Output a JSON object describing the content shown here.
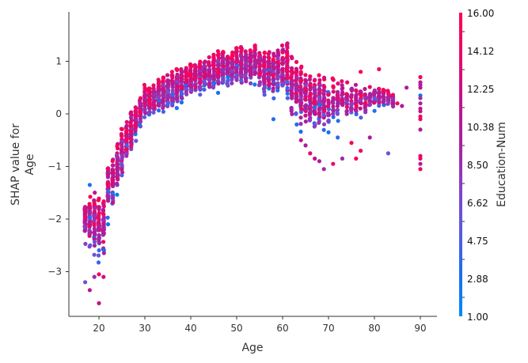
{
  "chart_data": {
    "type": "scatter",
    "title": "",
    "xlabel": "Age",
    "ylabel": "SHAP value for\nAge",
    "ylabel_lines": [
      "SHAP value for",
      "Age"
    ],
    "xlim": [
      14,
      94
    ],
    "ylim": [
      -3.85,
      1.9
    ],
    "x_ticks": [
      20,
      30,
      40,
      50,
      60,
      70,
      80,
      90
    ],
    "y_ticks": [
      1,
      0,
      -1,
      -2,
      -3
    ],
    "y_tick_labels": [
      "1",
      "0",
      "−1",
      "−2",
      "−3"
    ],
    "grid": false,
    "colorbar": {
      "label": "Education-Num",
      "min": 1.0,
      "max": 16.0,
      "tick_labels": [
        "16.00",
        "14.12",
        "12.25",
        "10.38",
        "8.50",
        "6.62",
        "4.75",
        "2.88",
        "1.00"
      ],
      "colormap": [
        "#008afb",
        "#1b6ef0",
        "#5b5ae0",
        "#8a3fc4",
        "#a8219f",
        "#c4128a",
        "#e60a6b",
        "#ff0052"
      ]
    },
    "point_color_low": "#008afb",
    "point_color_high": "#ff0052",
    "profile": [
      {
        "age": 17,
        "lo": -2.65,
        "hi": -1.55
      },
      {
        "age": 18,
        "lo": -2.75,
        "hi": -1.5
      },
      {
        "age": 19,
        "lo": -2.8,
        "hi": -1.45
      },
      {
        "age": 20,
        "lo": -2.85,
        "hi": -1.6
      },
      {
        "age": 21,
        "lo": -2.85,
        "hi": -1.55
      },
      {
        "age": 22,
        "lo": -2.1,
        "hi": -0.9
      },
      {
        "age": 23,
        "lo": -2.0,
        "hi": -0.8
      },
      {
        "age": 24,
        "lo": -1.6,
        "hi": -0.55
      },
      {
        "age": 25,
        "lo": -1.35,
        "hi": -0.25
      },
      {
        "age": 26,
        "lo": -1.0,
        "hi": -0.15
      },
      {
        "age": 27,
        "lo": -0.85,
        "hi": 0.05
      },
      {
        "age": 28,
        "lo": -0.6,
        "hi": 0.15
      },
      {
        "age": 29,
        "lo": -0.35,
        "hi": 0.3
      },
      {
        "age": 30,
        "lo": -0.2,
        "hi": 0.55
      },
      {
        "age": 32,
        "lo": -0.1,
        "hi": 0.6
      },
      {
        "age": 34,
        "lo": 0.0,
        "hi": 0.7
      },
      {
        "age": 36,
        "lo": 0.05,
        "hi": 0.8
      },
      {
        "age": 38,
        "lo": 0.15,
        "hi": 0.9
      },
      {
        "age": 40,
        "lo": 0.25,
        "hi": 1.0
      },
      {
        "age": 42,
        "lo": 0.3,
        "hi": 1.05
      },
      {
        "age": 44,
        "lo": 0.35,
        "hi": 1.1
      },
      {
        "age": 46,
        "lo": 0.4,
        "hi": 1.2
      },
      {
        "age": 48,
        "lo": 0.45,
        "hi": 1.2
      },
      {
        "age": 50,
        "lo": 0.5,
        "hi": 1.25
      },
      {
        "age": 52,
        "lo": 0.45,
        "hi": 1.3
      },
      {
        "age": 54,
        "lo": 0.4,
        "hi": 1.3
      },
      {
        "age": 56,
        "lo": 0.3,
        "hi": 1.2
      },
      {
        "age": 58,
        "lo": 0.25,
        "hi": 1.2
      },
      {
        "age": 60,
        "lo": 0.2,
        "hi": 1.3
      },
      {
        "age": 61,
        "lo": 0.1,
        "hi": 1.45
      },
      {
        "age": 62,
        "lo": -0.2,
        "hi": 1.1
      },
      {
        "age": 64,
        "lo": -0.35,
        "hi": 0.9
      },
      {
        "age": 66,
        "lo": -0.5,
        "hi": 0.8
      },
      {
        "age": 68,
        "lo": -0.4,
        "hi": 0.75
      },
      {
        "age": 70,
        "lo": -0.35,
        "hi": 0.7
      },
      {
        "age": 72,
        "lo": -0.25,
        "hi": 0.65
      },
      {
        "age": 74,
        "lo": -0.2,
        "hi": 0.6
      },
      {
        "age": 76,
        "lo": -0.1,
        "hi": 0.6
      },
      {
        "age": 78,
        "lo": -0.05,
        "hi": 0.55
      },
      {
        "age": 80,
        "lo": 0.0,
        "hi": 0.55
      },
      {
        "age": 82,
        "lo": 0.1,
        "hi": 0.5
      },
      {
        "age": 84,
        "lo": 0.1,
        "hi": 0.4
      }
    ],
    "outliers": [
      {
        "x": 17,
        "y": -3.2,
        "c": 6
      },
      {
        "x": 18,
        "y": -3.35,
        "c": 11
      },
      {
        "x": 19,
        "y": -3.1,
        "c": 9
      },
      {
        "x": 20,
        "y": -3.6,
        "c": 12
      },
      {
        "x": 20,
        "y": -3.05,
        "c": 15
      },
      {
        "x": 21,
        "y": -3.1,
        "c": 12
      },
      {
        "x": 18,
        "y": -1.35,
        "c": 3
      },
      {
        "x": 58,
        "y": -0.1,
        "c": 3
      },
      {
        "x": 64,
        "y": -0.5,
        "c": 12
      },
      {
        "x": 65,
        "y": -0.6,
        "c": 10
      },
      {
        "x": 66,
        "y": -0.75,
        "c": 14
      },
      {
        "x": 67,
        "y": -0.85,
        "c": 12
      },
      {
        "x": 68,
        "y": -0.9,
        "c": 10
      },
      {
        "x": 69,
        "y": -1.05,
        "c": 9
      },
      {
        "x": 71,
        "y": -0.95,
        "c": 14
      },
      {
        "x": 73,
        "y": -0.85,
        "c": 9
      },
      {
        "x": 75,
        "y": -0.55,
        "c": 15
      },
      {
        "x": 76,
        "y": -0.85,
        "c": 15
      },
      {
        "x": 77,
        "y": -0.7,
        "c": 14
      },
      {
        "x": 79,
        "y": -0.45,
        "c": 10
      },
      {
        "x": 83,
        "y": -0.75,
        "c": 6
      },
      {
        "x": 70,
        "y": -0.35,
        "c": 3
      },
      {
        "x": 72,
        "y": -0.45,
        "c": 4
      },
      {
        "x": 87,
        "y": 0.5,
        "c": 10
      },
      {
        "x": 85,
        "y": 0.2,
        "c": 14
      },
      {
        "x": 86,
        "y": 0.15,
        "c": 10
      },
      {
        "x": 81,
        "y": 0.85,
        "c": 15
      },
      {
        "x": 77,
        "y": 0.8,
        "c": 15
      }
    ],
    "age90_points": [
      0.7,
      0.6,
      0.55,
      0.5,
      0.35,
      0.3,
      0.2,
      0.1,
      0.05,
      -0.05,
      -0.1,
      -0.3,
      -0.8,
      -0.85,
      -0.95,
      -1.05
    ],
    "age90_colors": [
      15,
      11,
      10,
      11,
      3,
      9,
      10,
      12,
      11,
      14,
      15,
      10,
      15,
      14,
      10,
      15
    ]
  }
}
